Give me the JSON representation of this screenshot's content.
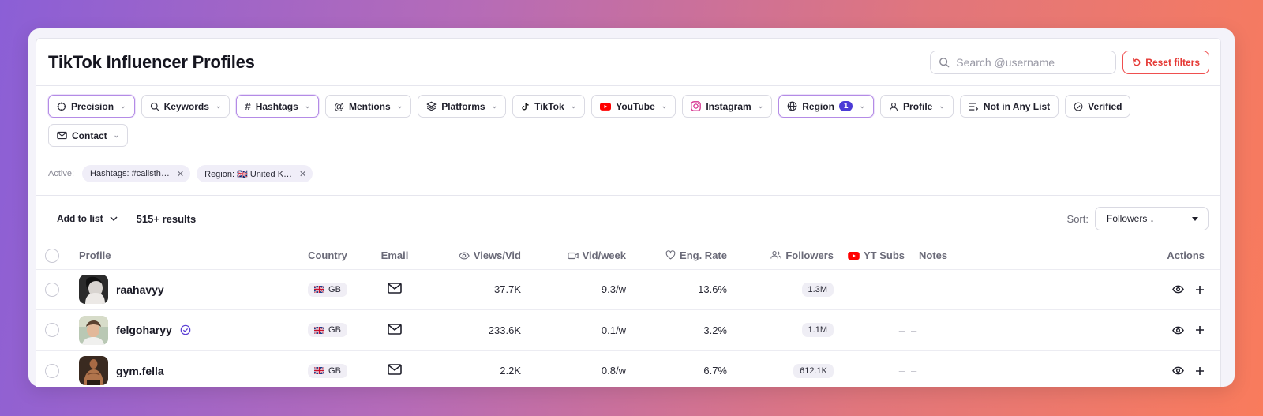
{
  "header": {
    "title": "TikTok Influencer Profiles",
    "search_placeholder": "Search @username",
    "reset_label": "Reset filters"
  },
  "filters": [
    {
      "label": "Precision",
      "icon": "crosshair-icon",
      "active": true,
      "badge": null
    },
    {
      "label": "Keywords",
      "icon": "search-icon",
      "active": false,
      "badge": null
    },
    {
      "label": "Hashtags",
      "icon": "hash-icon",
      "active": true,
      "badge": null
    },
    {
      "label": "Mentions",
      "icon": "at-icon",
      "active": false,
      "badge": null
    },
    {
      "label": "Platforms",
      "icon": "layers-icon",
      "active": false,
      "badge": null
    },
    {
      "label": "TikTok",
      "icon": "tiktok-icon",
      "active": false,
      "badge": null
    },
    {
      "label": "YouTube",
      "icon": "youtube-icon",
      "active": false,
      "badge": null
    },
    {
      "label": "Instagram",
      "icon": "instagram-icon",
      "active": false,
      "badge": null
    },
    {
      "label": "Region",
      "icon": "globe-icon",
      "active": true,
      "badge": "1"
    },
    {
      "label": "Profile",
      "icon": "user-icon",
      "active": false,
      "badge": null
    },
    {
      "label": "Not in Any List",
      "icon": "list-icon",
      "active": false,
      "badge": null,
      "no_chevron": true
    },
    {
      "label": "Verified",
      "icon": "verified-icon",
      "active": false,
      "badge": null,
      "no_chevron": true
    },
    {
      "label": "Contact",
      "icon": "mail-icon",
      "active": false,
      "badge": null
    }
  ],
  "active_filters": {
    "label": "Active:",
    "tags": [
      "Hashtags: #calisth…",
      "Region: 🇬🇧 United K…"
    ]
  },
  "toolbar": {
    "add_to_list": "Add to list",
    "results": "515+ results",
    "sort_label": "Sort:",
    "sort_value": "Followers ↓"
  },
  "table": {
    "columns": {
      "profile": "Profile",
      "country": "Country",
      "email": "Email",
      "views": "Views/Vid",
      "vidweek": "Vid/week",
      "eng": "Eng. Rate",
      "followers": "Followers",
      "ytsubs": "YT Subs",
      "notes": "Notes",
      "actions": "Actions"
    },
    "rows": [
      {
        "username": "raahavyy",
        "verified": false,
        "country": "GB",
        "views": "37.7K",
        "vidweek": "9.3/w",
        "eng": "13.6%",
        "followers": "1.3M",
        "ytsubs": "–",
        "notes": "–"
      },
      {
        "username": "felgoharyy",
        "verified": true,
        "country": "GB",
        "views": "233.6K",
        "vidweek": "0.1/w",
        "eng": "3.2%",
        "followers": "1.1M",
        "ytsubs": "–",
        "notes": "–"
      },
      {
        "username": "gym.fella",
        "verified": false,
        "country": "GB",
        "views": "2.2K",
        "vidweek": "0.8/w",
        "eng": "6.7%",
        "followers": "612.1K",
        "ytsubs": "–",
        "notes": "–"
      }
    ]
  },
  "colors": {
    "accent": "#4b3bd6",
    "danger": "#e53935",
    "active_border": "#b48be6"
  }
}
